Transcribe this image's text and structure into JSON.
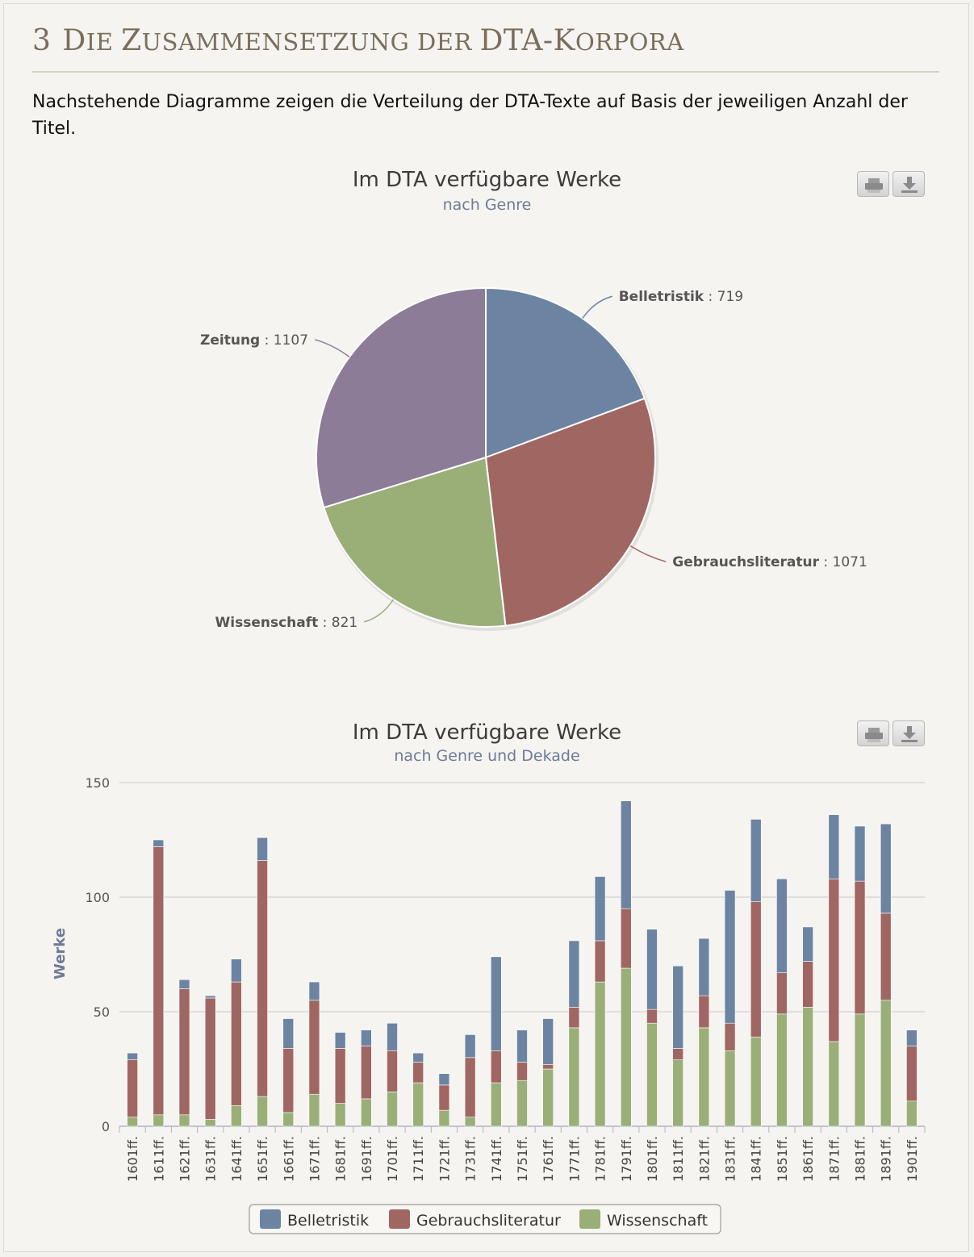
{
  "section": {
    "number": "3",
    "title_first": "D",
    "title_rest1": "IE ",
    "title_z": "Z",
    "title_rest2": "USAMMENSETZUNG DER ",
    "title_dta": "DTA-K",
    "title_rest3": "ORPORA"
  },
  "intro": "Nachstehende Diagramme zeigen die Verteilung der DTA-Texte auf Basis der jeweiligen Anzahl der Titel.",
  "colors": {
    "Belletristik": "#6c84a2",
    "Gebrauchsliteratur": "#a06662",
    "Wissenschaft": "#9aaf78",
    "Zeitung": "#8c7c98"
  },
  "icons": [
    "print-icon",
    "download-icon"
  ],
  "chart_data": [
    {
      "type": "pie",
      "title": "Im DTA verfügbare Werke",
      "subtitle": "nach Genre",
      "slices": [
        {
          "name": "Belletristik",
          "value": 719
        },
        {
          "name": "Gebrauchsliteratur",
          "value": 1071
        },
        {
          "name": "Wissenschaft",
          "value": 821
        },
        {
          "name": "Zeitung",
          "value": 1107
        }
      ]
    },
    {
      "type": "bar",
      "stacked": true,
      "title": "Im DTA verfügbare Werke",
      "subtitle": "nach Genre und Dekade",
      "ylabel": "Werke",
      "ylim": [
        0,
        150
      ],
      "yticks": [
        0,
        50,
        100,
        150
      ],
      "grid": true,
      "legend": "bottom-center",
      "categories": [
        "1601ff.",
        "1611ff.",
        "1621ff.",
        "1631ff.",
        "1641ff.",
        "1651ff.",
        "1661ff.",
        "1671ff.",
        "1681ff.",
        "1691ff.",
        "1701ff.",
        "1711ff.",
        "1721ff.",
        "1731ff.",
        "1741ff.",
        "1751ff.",
        "1761ff.",
        "1771ff.",
        "1781ff.",
        "1791ff.",
        "1801ff.",
        "1811ff.",
        "1821ff.",
        "1831ff.",
        "1841ff.",
        "1851ff.",
        "1861ff.",
        "1871ff.",
        "1881ff.",
        "1891ff.",
        "1901ff."
      ],
      "series": [
        {
          "name": "Wissenschaft",
          "values": [
            4,
            5,
            5,
            3,
            9,
            13,
            6,
            14,
            10,
            12,
            15,
            19,
            7,
            4,
            19,
            20,
            25,
            43,
            63,
            69,
            45,
            29,
            43,
            33,
            39,
            49,
            52,
            37,
            49,
            55,
            11
          ]
        },
        {
          "name": "Gebrauchsliteratur",
          "values": [
            25,
            117,
            55,
            53,
            54,
            103,
            28,
            41,
            24,
            23,
            18,
            9,
            11,
            26,
            14,
            8,
            2,
            9,
            18,
            26,
            6,
            5,
            14,
            12,
            59,
            18,
            20,
            71,
            58,
            38,
            24
          ]
        },
        {
          "name": "Belletristik",
          "values": [
            3,
            3,
            4,
            1,
            10,
            10,
            13,
            8,
            7,
            7,
            12,
            4,
            5,
            10,
            41,
            14,
            20,
            29,
            28,
            47,
            35,
            36,
            25,
            58,
            36,
            41,
            15,
            28,
            24,
            39,
            7
          ]
        }
      ]
    }
  ]
}
